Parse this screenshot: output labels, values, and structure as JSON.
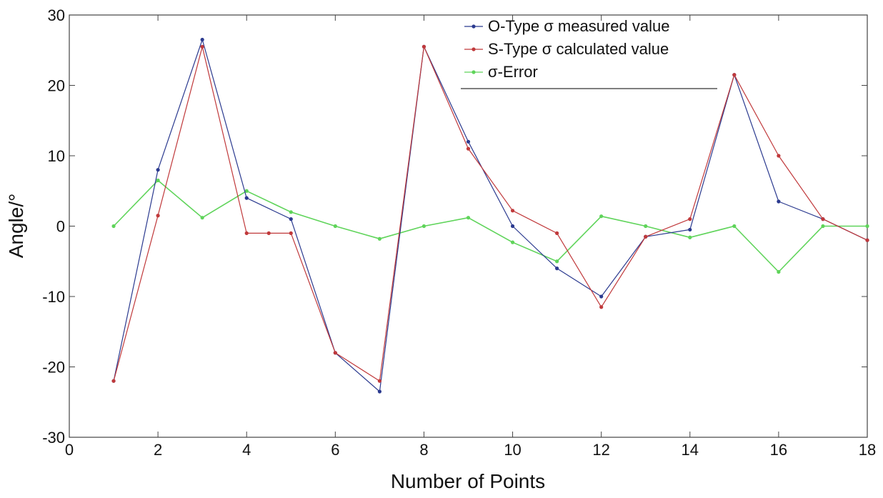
{
  "chart_data": {
    "type": "line",
    "title": "",
    "xlabel": "Number of Points",
    "ylabel": "Angle/°",
    "xlim": [
      0,
      18
    ],
    "ylim": [
      -30,
      30
    ],
    "xticks": [
      0,
      2,
      4,
      6,
      8,
      10,
      12,
      14,
      16,
      18
    ],
    "yticks": [
      -30,
      -20,
      -10,
      0,
      10,
      20,
      30
    ],
    "grid": false,
    "legend_position": "top-right",
    "series": [
      {
        "name": "O-Type σ measured value",
        "color": "#2b3a8f",
        "x": [
          1,
          2,
          3,
          4,
          5,
          6,
          7,
          8,
          9,
          10,
          11,
          12,
          13,
          14,
          15,
          16,
          17,
          18
        ],
        "values": [
          -22,
          8,
          26.5,
          4,
          1,
          -18,
          -23.5,
          25.5,
          12,
          0,
          -6,
          -10,
          -1.5,
          -0.5,
          21.5,
          3.5,
          1,
          -2
        ]
      },
      {
        "name": "S-Type σ calculated value",
        "color": "#c0393b",
        "x": [
          1,
          2,
          3,
          4,
          4.5,
          5,
          6,
          7,
          8,
          9,
          10,
          11,
          12,
          13,
          14,
          15,
          16,
          17,
          18
        ],
        "values": [
          -22,
          1.5,
          25.5,
          -1,
          -1,
          -1,
          -18,
          -22,
          25.5,
          11,
          2.2,
          -1,
          -11.5,
          -1.5,
          1,
          21.5,
          10,
          1,
          -2
        ]
      },
      {
        "name": "σ-Error",
        "color": "#5fd45a",
        "x": [
          1,
          2,
          3,
          4,
          5,
          6,
          7,
          8,
          9,
          10,
          11,
          12,
          13,
          14,
          15,
          16,
          17,
          18
        ],
        "values": [
          0,
          6.5,
          1.2,
          5,
          2,
          0,
          -1.8,
          0,
          1.2,
          -2.3,
          -5,
          1.4,
          0,
          -1.6,
          0,
          -6.5,
          0,
          0
        ]
      }
    ]
  }
}
